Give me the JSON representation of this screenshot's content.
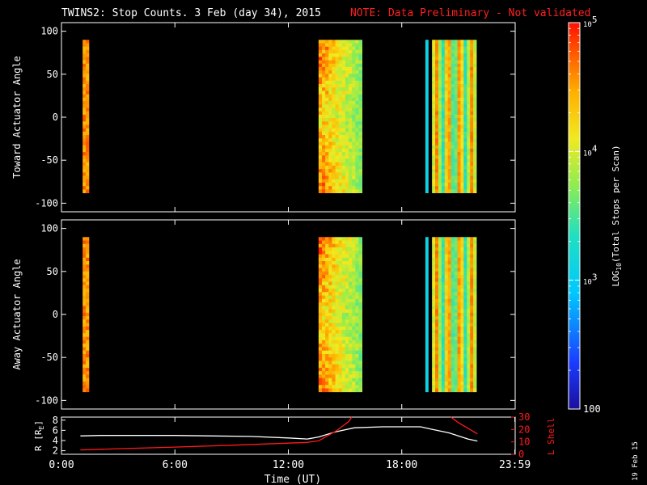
{
  "header": {
    "title": "TWINS2: Stop Counts.  3 Feb (day  34), 2015",
    "note": "NOTE: Data Preliminary - Not validated",
    "title_color": "#ffffff",
    "note_color": "#ff2020"
  },
  "date_stamp": "19 Feb 15",
  "chart_data": [
    {
      "type": "heatmap",
      "name": "toward-panel",
      "ylabel": "Toward Actuator Angle",
      "ylim": [
        -110,
        110
      ],
      "yticks": [
        100,
        50,
        0,
        -50,
        -100
      ],
      "x_range_hours": [
        0,
        24
      ],
      "angle_coverage": [
        -88,
        90
      ],
      "scan_blocks_hours": [
        {
          "start": 1.12,
          "end": 1.45
        },
        {
          "start": 13.6,
          "end": 15.9
        },
        {
          "start": 19.25,
          "end": 19.4
        },
        {
          "start": 19.6,
          "end": 21.95
        }
      ]
    },
    {
      "type": "heatmap",
      "name": "away-panel",
      "ylabel": "Away Actuator Angle",
      "ylim": [
        -110,
        110
      ],
      "yticks": [
        100,
        50,
        0,
        -50,
        -100
      ],
      "x_range_hours": [
        0,
        24
      ],
      "angle_coverage": [
        -90,
        90
      ],
      "scan_blocks_hours": [
        {
          "start": 1.12,
          "end": 1.45
        },
        {
          "start": 13.6,
          "end": 15.9
        },
        {
          "start": 19.25,
          "end": 19.4
        },
        {
          "start": 19.6,
          "end": 21.95
        }
      ]
    },
    {
      "type": "line",
      "name": "orbit-panel",
      "xlabel": "Time (UT)",
      "x_tick_hours": [
        0,
        6,
        12,
        18,
        23.983
      ],
      "x_tick_labels": [
        "0:00",
        "6:00",
        "12:00",
        "18:00",
        "23:59"
      ],
      "ylabel_left": "R [R",
      "ylabel_left_sub": "E",
      "ylabel_left_end": "]",
      "ylabel_right": "L Shell",
      "ylim_left": [
        1.3,
        8.6
      ],
      "yticks_left": [
        2,
        4,
        6,
        8
      ],
      "ylim_right": [
        0,
        30
      ],
      "yticks_right": [
        0,
        10,
        20,
        30
      ],
      "series": [
        {
          "axis": "left",
          "color": "#ffffff",
          "x": [
            1.0,
            2.0,
            4.0,
            6.0,
            8.0,
            10.0,
            12.0,
            13.0,
            13.6,
            14.5,
            15.5,
            17.0,
            18.0,
            19.0,
            19.6,
            20.5,
            21.5,
            22.0
          ],
          "y": [
            4.9,
            5.0,
            5.0,
            5.0,
            4.9,
            4.8,
            4.5,
            4.3,
            4.7,
            5.7,
            6.5,
            6.7,
            6.7,
            6.7,
            6.2,
            5.5,
            4.3,
            3.9
          ]
        },
        {
          "axis": "right",
          "color": "#ff1a1a",
          "x": [
            1.0,
            3.0,
            6.0,
            9.0,
            12.0,
            13.0,
            13.6,
            14.5,
            15.2,
            15.35
          ],
          "y": [
            3.5,
            4.5,
            5.8,
            7.3,
            9.0,
            9.6,
            10.8,
            18.5,
            26.5,
            30.0
          ]
        },
        {
          "axis": "right",
          "color": "#ff1a1a",
          "x": [
            20.6,
            21.0,
            21.5,
            22.0
          ],
          "y": [
            30.0,
            25.5,
            21.0,
            16.5
          ]
        }
      ]
    }
  ],
  "colorbar": {
    "label_prefix": "LOG",
    "label_sub": "10",
    "label_suffix": "(Total Stops per Scan)",
    "ticks": [
      {
        "base": "10",
        "exp": "5",
        "value": 100000
      },
      {
        "base": "10",
        "exp": "4",
        "value": 10000
      },
      {
        "base": "10",
        "exp": "3",
        "value": 1000
      },
      {
        "base": "100",
        "exp": "",
        "value": 100
      }
    ],
    "log_range": [
      2,
      5
    ]
  },
  "colors": {
    "axis": "#ffffff",
    "background": "#000000"
  }
}
